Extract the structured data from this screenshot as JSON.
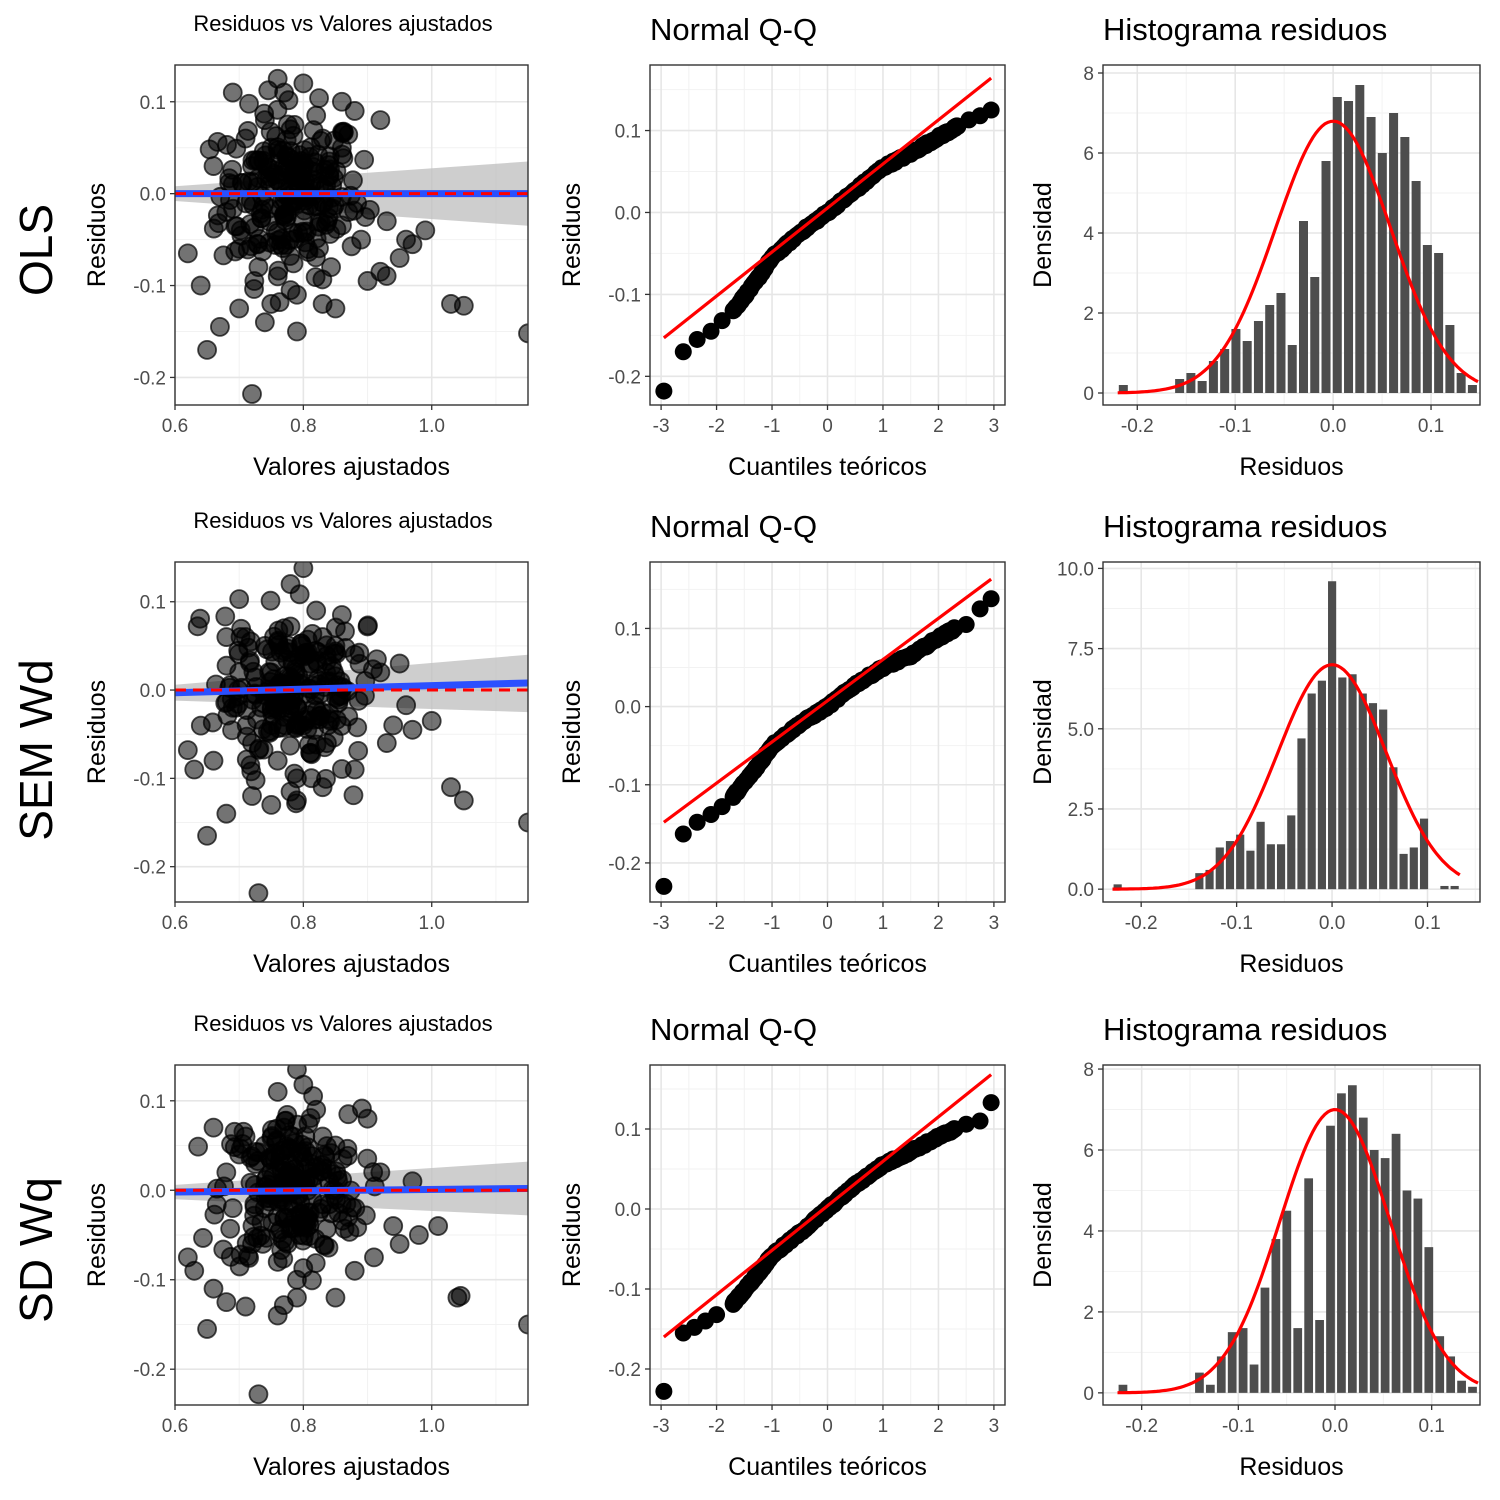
{
  "row_labels": [
    "OLS",
    "SEM Wd",
    "SD Wq"
  ],
  "colors": {
    "points": "#000000",
    "smooth_line": "#2b50ff",
    "zero_line": "#ff0000",
    "ribbon": "#bdbdbd",
    "qq_line": "#ff0000",
    "density_curve": "#ff0000",
    "bars": "#4d4d4d",
    "grid_major": "#e6e6e6",
    "grid_minor": "#f2f2f2",
    "panel_border": "#333333"
  },
  "chart_data": [
    {
      "type": "scatter",
      "model": "OLS",
      "title": "Residuos vs Valores ajustados",
      "xlabel": "Valores ajustados",
      "ylabel": "Residuos",
      "xlim": [
        0.6,
        1.15
      ],
      "ylim": [
        -0.23,
        0.14
      ],
      "xticks": [
        0.6,
        0.8,
        1.0
      ],
      "xtick_labels": [
        "0.6",
        "0.8",
        "1.0"
      ],
      "yticks": [
        -0.2,
        -0.1,
        0.0,
        0.1
      ],
      "ytick_labels": [
        "-0.2",
        "-0.1",
        "0.0",
        "0.1"
      ],
      "smooth": {
        "x": [
          0.6,
          1.15
        ],
        "y": [
          0.0,
          0.0
        ],
        "se_low": [
          -0.008,
          -0.035
        ],
        "se_high": [
          0.008,
          0.035
        ]
      },
      "reference_y": 0,
      "points": [
        [
          0.72,
          -0.218
        ],
        [
          0.65,
          -0.17
        ],
        [
          0.62,
          -0.065
        ],
        [
          0.64,
          -0.1
        ],
        [
          0.67,
          -0.145
        ],
        [
          0.66,
          0.03
        ],
        [
          0.69,
          0.11
        ],
        [
          0.74,
          -0.14
        ],
        [
          0.79,
          -0.15
        ],
        [
          0.83,
          -0.12
        ],
        [
          0.85,
          -0.125
        ],
        [
          0.9,
          -0.095
        ],
        [
          0.92,
          -0.085
        ],
        [
          0.95,
          -0.07
        ],
        [
          0.97,
          -0.055
        ],
        [
          0.99,
          -0.04
        ],
        [
          1.03,
          -0.12
        ],
        [
          1.05,
          -0.122
        ],
        [
          1.15,
          -0.152
        ],
        [
          0.92,
          0.08
        ],
        [
          0.88,
          0.09
        ],
        [
          0.86,
          0.1
        ],
        [
          0.76,
          0.125
        ],
        [
          0.8,
          0.12
        ],
        [
          0.77,
          0.11
        ],
        [
          0.72,
          0.03
        ],
        [
          0.75,
          0.05
        ],
        [
          0.78,
          0.07
        ],
        [
          0.81,
          0.04
        ],
        [
          0.84,
          0.02
        ],
        [
          0.87,
          -0.02
        ],
        [
          0.89,
          -0.05
        ],
        [
          0.7,
          -0.06
        ],
        [
          0.73,
          -0.08
        ],
        [
          0.76,
          -0.09
        ],
        [
          0.79,
          -0.11
        ],
        [
          0.68,
          -0.02
        ],
        [
          0.71,
          0.06
        ],
        [
          0.74,
          0.08
        ],
        [
          0.77,
          0.02
        ],
        [
          0.8,
          -0.03
        ],
        [
          0.83,
          0.06
        ],
        [
          0.86,
          0.05
        ],
        [
          0.69,
          0.01
        ],
        [
          0.93,
          -0.03
        ],
        [
          0.96,
          -0.05
        ],
        [
          0.82,
          0.085
        ],
        [
          0.75,
          -0.12
        ],
        [
          0.78,
          -0.105
        ],
        [
          0.7,
          -0.125
        ]
      ]
    },
    {
      "type": "qq",
      "model": "OLS",
      "title": "Normal Q-Q",
      "xlabel": "Cuantiles teóricos",
      "ylabel": "Residuos",
      "xlim": [
        -3.2,
        3.2
      ],
      "ylim": [
        -0.235,
        0.18
      ],
      "xticks": [
        -3,
        -2,
        -1,
        0,
        1,
        2,
        3
      ],
      "xtick_labels": [
        "-3",
        "-2",
        "-1",
        "0",
        "1",
        "2",
        "3"
      ],
      "yticks": [
        -0.2,
        -0.1,
        0.0,
        0.1
      ],
      "ytick_labels": [
        "-0.2",
        "-0.1",
        "0.0",
        "0.1"
      ],
      "line": {
        "x": [
          -2.95,
          2.95
        ],
        "y": [
          -0.153,
          0.164
        ]
      },
      "tail_low": [
        [
          -2.95,
          -0.218
        ],
        [
          -2.6,
          -0.17
        ],
        [
          -2.35,
          -0.155
        ],
        [
          -2.1,
          -0.145
        ],
        [
          -1.9,
          -0.132
        ],
        [
          -1.7,
          -0.12
        ]
      ],
      "tail_high": [
        [
          2.35,
          0.105
        ],
        [
          2.55,
          0.113
        ],
        [
          2.75,
          0.118
        ],
        [
          2.95,
          0.125
        ]
      ],
      "body": {
        "x": [
          -1.7,
          -1.3,
          -1.0,
          -0.5,
          0.0,
          0.5,
          1.0,
          1.5,
          2.0,
          2.35
        ],
        "y": [
          -0.12,
          -0.085,
          -0.055,
          -0.025,
          0.0,
          0.027,
          0.055,
          0.072,
          0.092,
          0.105
        ]
      }
    },
    {
      "type": "histogram",
      "model": "OLS",
      "title": "Histograma residuos",
      "xlabel": "Residuos",
      "ylabel": "Densidad",
      "xlim": [
        -0.235,
        0.15
      ],
      "ylim": [
        -0.3,
        8.2
      ],
      "xticks": [
        -0.2,
        -0.1,
        0.0,
        0.1
      ],
      "xtick_labels": [
        "-0.2",
        "-0.1",
        "0.0",
        "0.1"
      ],
      "yticks": [
        0,
        2,
        4,
        6,
        8
      ],
      "ytick_labels": [
        "0",
        "2",
        "4",
        "6",
        "8"
      ],
      "bin_start": -0.22,
      "bin_width": 0.0115,
      "values": [
        0.2,
        0,
        0,
        0,
        0,
        0.35,
        0.5,
        0.3,
        0.8,
        1.1,
        1.6,
        1.3,
        1.8,
        2.2,
        2.5,
        1.2,
        4.3,
        2.9,
        5.8,
        7.4,
        7.3,
        7.7,
        6.9,
        6.0,
        7.0,
        6.4,
        5.3,
        3.7,
        3.5,
        1.7,
        0.5,
        0.2
      ],
      "normal": {
        "mean": 0.0,
        "sd": 0.0587
      }
    },
    {
      "type": "scatter",
      "model": "SEM Wd",
      "title": "Residuos vs Valores ajustados",
      "xlabel": "Valores ajustados",
      "ylabel": "Residuos",
      "xlim": [
        0.6,
        1.15
      ],
      "ylim": [
        -0.24,
        0.145
      ],
      "xticks": [
        0.6,
        0.8,
        1.0
      ],
      "xtick_labels": [
        "0.6",
        "0.8",
        "1.0"
      ],
      "yticks": [
        -0.2,
        -0.1,
        0.0,
        0.1
      ],
      "ytick_labels": [
        "-0.2",
        "-0.1",
        "0.0",
        "0.1"
      ],
      "smooth": {
        "x": [
          0.6,
          1.15
        ],
        "y": [
          -0.003,
          0.008
        ],
        "se_low": [
          -0.012,
          -0.025
        ],
        "se_high": [
          0.006,
          0.04
        ]
      },
      "reference_y": 0,
      "points": [
        [
          0.73,
          -0.23
        ],
        [
          0.65,
          -0.165
        ],
        [
          0.62,
          -0.068
        ],
        [
          0.63,
          -0.09
        ],
        [
          0.66,
          -0.08
        ],
        [
          0.68,
          -0.14
        ],
        [
          0.7,
          0.103
        ],
        [
          0.75,
          -0.13
        ],
        [
          0.79,
          -0.125
        ],
        [
          0.83,
          -0.11
        ],
        [
          0.88,
          -0.09
        ],
        [
          0.93,
          -0.06
        ],
        [
          0.97,
          -0.045
        ],
        [
          1.0,
          -0.035
        ],
        [
          1.03,
          -0.11
        ],
        [
          1.05,
          -0.125
        ],
        [
          1.15,
          -0.15
        ],
        [
          0.9,
          0.072
        ],
        [
          0.86,
          0.085
        ],
        [
          0.8,
          0.138
        ],
        [
          0.78,
          0.12
        ],
        [
          0.74,
          0.05
        ],
        [
          0.77,
          0.07
        ],
        [
          0.81,
          0.03
        ],
        [
          0.84,
          0.01
        ],
        [
          0.87,
          -0.03
        ],
        [
          0.72,
          -0.06
        ],
        [
          0.76,
          -0.08
        ],
        [
          0.79,
          -0.1
        ],
        [
          0.69,
          -0.02
        ],
        [
          0.71,
          0.06
        ],
        [
          0.75,
          0.02
        ],
        [
          0.8,
          -0.04
        ],
        [
          0.83,
          0.06
        ],
        [
          0.85,
          0.05
        ],
        [
          0.92,
          0.02
        ],
        [
          0.95,
          0.03
        ],
        [
          0.94,
          -0.04
        ],
        [
          0.68,
          0.06
        ],
        [
          0.82,
          0.09
        ],
        [
          0.78,
          -0.115
        ],
        [
          0.72,
          -0.12
        ],
        [
          0.7,
          0.02
        ],
        [
          0.88,
          0.04
        ]
      ]
    },
    {
      "type": "qq",
      "model": "SEM Wd",
      "title": "Normal Q-Q",
      "xlabel": "Cuantiles teóricos",
      "ylabel": "Residuos",
      "xlim": [
        -3.2,
        3.2
      ],
      "ylim": [
        -0.25,
        0.185
      ],
      "xticks": [
        -3,
        -2,
        -1,
        0,
        1,
        2,
        3
      ],
      "xtick_labels": [
        "-3",
        "-2",
        "-1",
        "0",
        "1",
        "2",
        "3"
      ],
      "yticks": [
        -0.2,
        -0.1,
        0.0,
        0.1
      ],
      "ytick_labels": [
        "-0.2",
        "-0.1",
        "0.0",
        "0.1"
      ],
      "line": {
        "x": [
          -2.95,
          2.95
        ],
        "y": [
          -0.148,
          0.163
        ]
      },
      "tail_low": [
        [
          -2.95,
          -0.23
        ],
        [
          -2.6,
          -0.163
        ],
        [
          -2.35,
          -0.148
        ],
        [
          -2.1,
          -0.138
        ],
        [
          -1.9,
          -0.128
        ],
        [
          -1.7,
          -0.115
        ]
      ],
      "tail_high": [
        [
          2.3,
          0.1
        ],
        [
          2.5,
          0.105
        ],
        [
          2.75,
          0.125
        ],
        [
          2.95,
          0.138
        ]
      ],
      "body": {
        "x": [
          -1.7,
          -1.3,
          -1.0,
          -0.5,
          0.0,
          0.5,
          1.0,
          1.5,
          2.0,
          2.3
        ],
        "y": [
          -0.115,
          -0.08,
          -0.05,
          -0.022,
          0.0,
          0.028,
          0.05,
          0.065,
          0.088,
          0.1
        ]
      }
    },
    {
      "type": "histogram",
      "model": "SEM Wd",
      "title": "Histograma residuos",
      "xlabel": "Residuos",
      "ylabel": "Densidad",
      "xlim": [
        -0.24,
        0.155
      ],
      "ylim": [
        -0.4,
        10.2
      ],
      "xticks": [
        -0.2,
        -0.1,
        0.0,
        0.1
      ],
      "xtick_labels": [
        "-0.2",
        "-0.1",
        "0.0",
        "0.1"
      ],
      "yticks": [
        0,
        2.5,
        5,
        7.5,
        10
      ],
      "ytick_labels": [
        "0.0",
        "2.5",
        "5.0",
        "7.5",
        "10.0"
      ],
      "bin_start": -0.23,
      "bin_width": 0.0107,
      "values": [
        0.15,
        0,
        0,
        0,
        0,
        0,
        0,
        0,
        0.5,
        0.6,
        1.3,
        1.5,
        1.7,
        1.2,
        2.1,
        1.4,
        1.4,
        2.3,
        4.7,
        6.1,
        6.5,
        9.6,
        6.6,
        6.7,
        6.1,
        5.8,
        5.6,
        3.8,
        1.1,
        1.3,
        2.2,
        0,
        0.1,
        0.1
      ],
      "normal": {
        "mean": 0.0,
        "sd": 0.057
      }
    },
    {
      "type": "scatter",
      "model": "SD Wq",
      "title": "Residuos vs Valores ajustados",
      "xlabel": "Valores ajustados",
      "ylabel": "Residuos",
      "xlim": [
        0.6,
        1.15
      ],
      "ylim": [
        -0.24,
        0.14
      ],
      "xticks": [
        0.6,
        0.8,
        1.0
      ],
      "xtick_labels": [
        "0.6",
        "0.8",
        "1.0"
      ],
      "yticks": [
        -0.2,
        -0.1,
        0.0,
        0.1
      ],
      "ytick_labels": [
        "-0.2",
        "-0.1",
        "0.0",
        "0.1"
      ],
      "smooth": {
        "x": [
          0.6,
          1.15
        ],
        "y": [
          -0.002,
          0.002
        ],
        "se_low": [
          -0.01,
          -0.028
        ],
        "se_high": [
          0.006,
          0.032
        ]
      },
      "reference_y": 0,
      "points": [
        [
          0.73,
          -0.228
        ],
        [
          0.65,
          -0.155
        ],
        [
          0.62,
          -0.075
        ],
        [
          0.63,
          -0.09
        ],
        [
          0.66,
          -0.11
        ],
        [
          0.68,
          -0.125
        ],
        [
          0.66,
          0.07
        ],
        [
          0.71,
          -0.13
        ],
        [
          0.76,
          -0.14
        ],
        [
          0.79,
          -0.12
        ],
        [
          0.85,
          -0.12
        ],
        [
          0.88,
          -0.09
        ],
        [
          0.91,
          -0.075
        ],
        [
          0.95,
          -0.06
        ],
        [
          0.98,
          -0.05
        ],
        [
          1.01,
          -0.04
        ],
        [
          1.04,
          -0.12
        ],
        [
          1.045,
          -0.118
        ],
        [
          1.15,
          -0.15
        ],
        [
          0.9,
          0.08
        ],
        [
          0.87,
          0.085
        ],
        [
          0.79,
          0.135
        ],
        [
          0.8,
          0.118
        ],
        [
          0.76,
          0.11
        ],
        [
          0.74,
          0.05
        ],
        [
          0.77,
          0.07
        ],
        [
          0.81,
          0.03
        ],
        [
          0.84,
          0.01
        ],
        [
          0.87,
          -0.03
        ],
        [
          0.72,
          -0.06
        ],
        [
          0.76,
          -0.08
        ],
        [
          0.79,
          -0.1
        ],
        [
          0.69,
          -0.02
        ],
        [
          0.71,
          0.06
        ],
        [
          0.75,
          0.02
        ],
        [
          0.8,
          -0.04
        ],
        [
          0.83,
          0.06
        ],
        [
          0.85,
          0.05
        ],
        [
          0.92,
          0.02
        ],
        [
          0.94,
          -0.04
        ],
        [
          0.68,
          0.02
        ],
        [
          0.82,
          0.09
        ],
        [
          0.7,
          0.04
        ],
        [
          0.97,
          0.01
        ]
      ]
    },
    {
      "type": "qq",
      "model": "SD Wq",
      "title": "Normal Q-Q",
      "xlabel": "Cuantiles teóricos",
      "ylabel": "Residuos",
      "xlim": [
        -3.2,
        3.2
      ],
      "ylim": [
        -0.245,
        0.18
      ],
      "xticks": [
        -3,
        -2,
        -1,
        0,
        1,
        2,
        3
      ],
      "xtick_labels": [
        "-3",
        "-2",
        "-1",
        "0",
        "1",
        "2",
        "3"
      ],
      "yticks": [
        -0.2,
        -0.1,
        0.0,
        0.1
      ],
      "ytick_labels": [
        "-0.2",
        "-0.1",
        "0.0",
        "0.1"
      ],
      "line": {
        "x": [
          -2.95,
          2.95
        ],
        "y": [
          -0.16,
          0.168
        ]
      },
      "tail_low": [
        [
          -2.95,
          -0.228
        ],
        [
          -2.6,
          -0.155
        ],
        [
          -2.4,
          -0.148
        ],
        [
          -2.2,
          -0.14
        ],
        [
          -2.0,
          -0.132
        ],
        [
          -1.7,
          -0.118
        ]
      ],
      "tail_high": [
        [
          2.3,
          0.1
        ],
        [
          2.5,
          0.106
        ],
        [
          2.75,
          0.11
        ],
        [
          2.95,
          0.133
        ]
      ],
      "body": {
        "x": [
          -1.7,
          -1.3,
          -1.0,
          -0.5,
          0.0,
          0.5,
          1.0,
          1.5,
          2.0,
          2.3
        ],
        "y": [
          -0.118,
          -0.085,
          -0.058,
          -0.03,
          0.0,
          0.03,
          0.055,
          0.072,
          0.09,
          0.1
        ]
      }
    },
    {
      "type": "histogram",
      "model": "SD Wq",
      "title": "Histograma residuos",
      "xlabel": "Residuos",
      "ylabel": "Densidad",
      "xlim": [
        -0.24,
        0.15
      ],
      "ylim": [
        -0.3,
        8.1
      ],
      "xticks": [
        -0.2,
        -0.1,
        0.0,
        0.1
      ],
      "xtick_labels": [
        "-0.2",
        "-0.1",
        "0.0",
        "0.1"
      ],
      "yticks": [
        0,
        2,
        4,
        6,
        8
      ],
      "ytick_labels": [
        "0",
        "2",
        "4",
        "6",
        "8"
      ],
      "bin_start": -0.225,
      "bin_width": 0.0113,
      "values": [
        0.2,
        0,
        0,
        0,
        0,
        0,
        0,
        0.5,
        0.2,
        0.9,
        1.5,
        1.6,
        0.7,
        2.6,
        3.8,
        4.5,
        1.6,
        5.3,
        1.8,
        6.6,
        7.4,
        7.6,
        6.8,
        6.0,
        5.8,
        6.4,
        5.0,
        4.8,
        3.6,
        1.4,
        0.9,
        0.3,
        0.15
      ],
      "normal": {
        "mean": 0.0,
        "sd": 0.057
      }
    }
  ]
}
